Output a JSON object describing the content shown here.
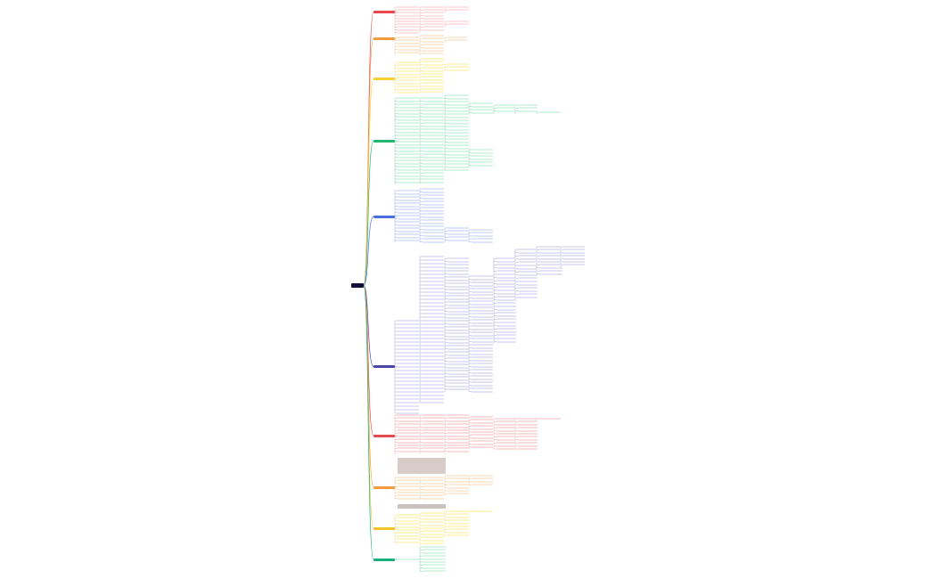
{
  "root": {
    "label": "",
    "color": "#12123a"
  },
  "branches": [
    {
      "name": "branch-1",
      "color": "#e8484a",
      "fill": "#fde3e3",
      "line": "#f3a6a6"
    },
    {
      "name": "branch-2",
      "color": "#f19a3e",
      "fill": "#fdebd9",
      "line": "#f5c590"
    },
    {
      "name": "branch-3",
      "color": "#f5d033",
      "fill": "#fff6c7",
      "line": "#f3dd72"
    },
    {
      "name": "branch-4",
      "color": "#1fb86e",
      "fill": "#d9f5e6",
      "line": "#7fd5a8"
    },
    {
      "name": "branch-5",
      "color": "#4a6ee0",
      "fill": "#dfe6fb",
      "line": "#94aaf0"
    },
    {
      "name": "branch-6",
      "color": "#4b4aa6",
      "fill": "#e3e3f5",
      "line": "#a4a3d6"
    },
    {
      "name": "branch-7",
      "color": "#e04a50",
      "fill": "#fbdcdc",
      "line": "#f0a2a4"
    },
    {
      "name": "branch-8",
      "color": "#f19a3e",
      "fill": "#fdebd9",
      "line": "#f5c590"
    },
    {
      "name": "branch-9",
      "color": "#f2c428",
      "fill": "#fff6c7",
      "line": "#f3dd72"
    },
    {
      "name": "branch-10",
      "color": "#18b07a",
      "fill": "#d9f5e6",
      "line": "#7fd5a8"
    }
  ],
  "special_fill": "#d8ccc8",
  "special_fill_dark": "#c9c2c0"
}
